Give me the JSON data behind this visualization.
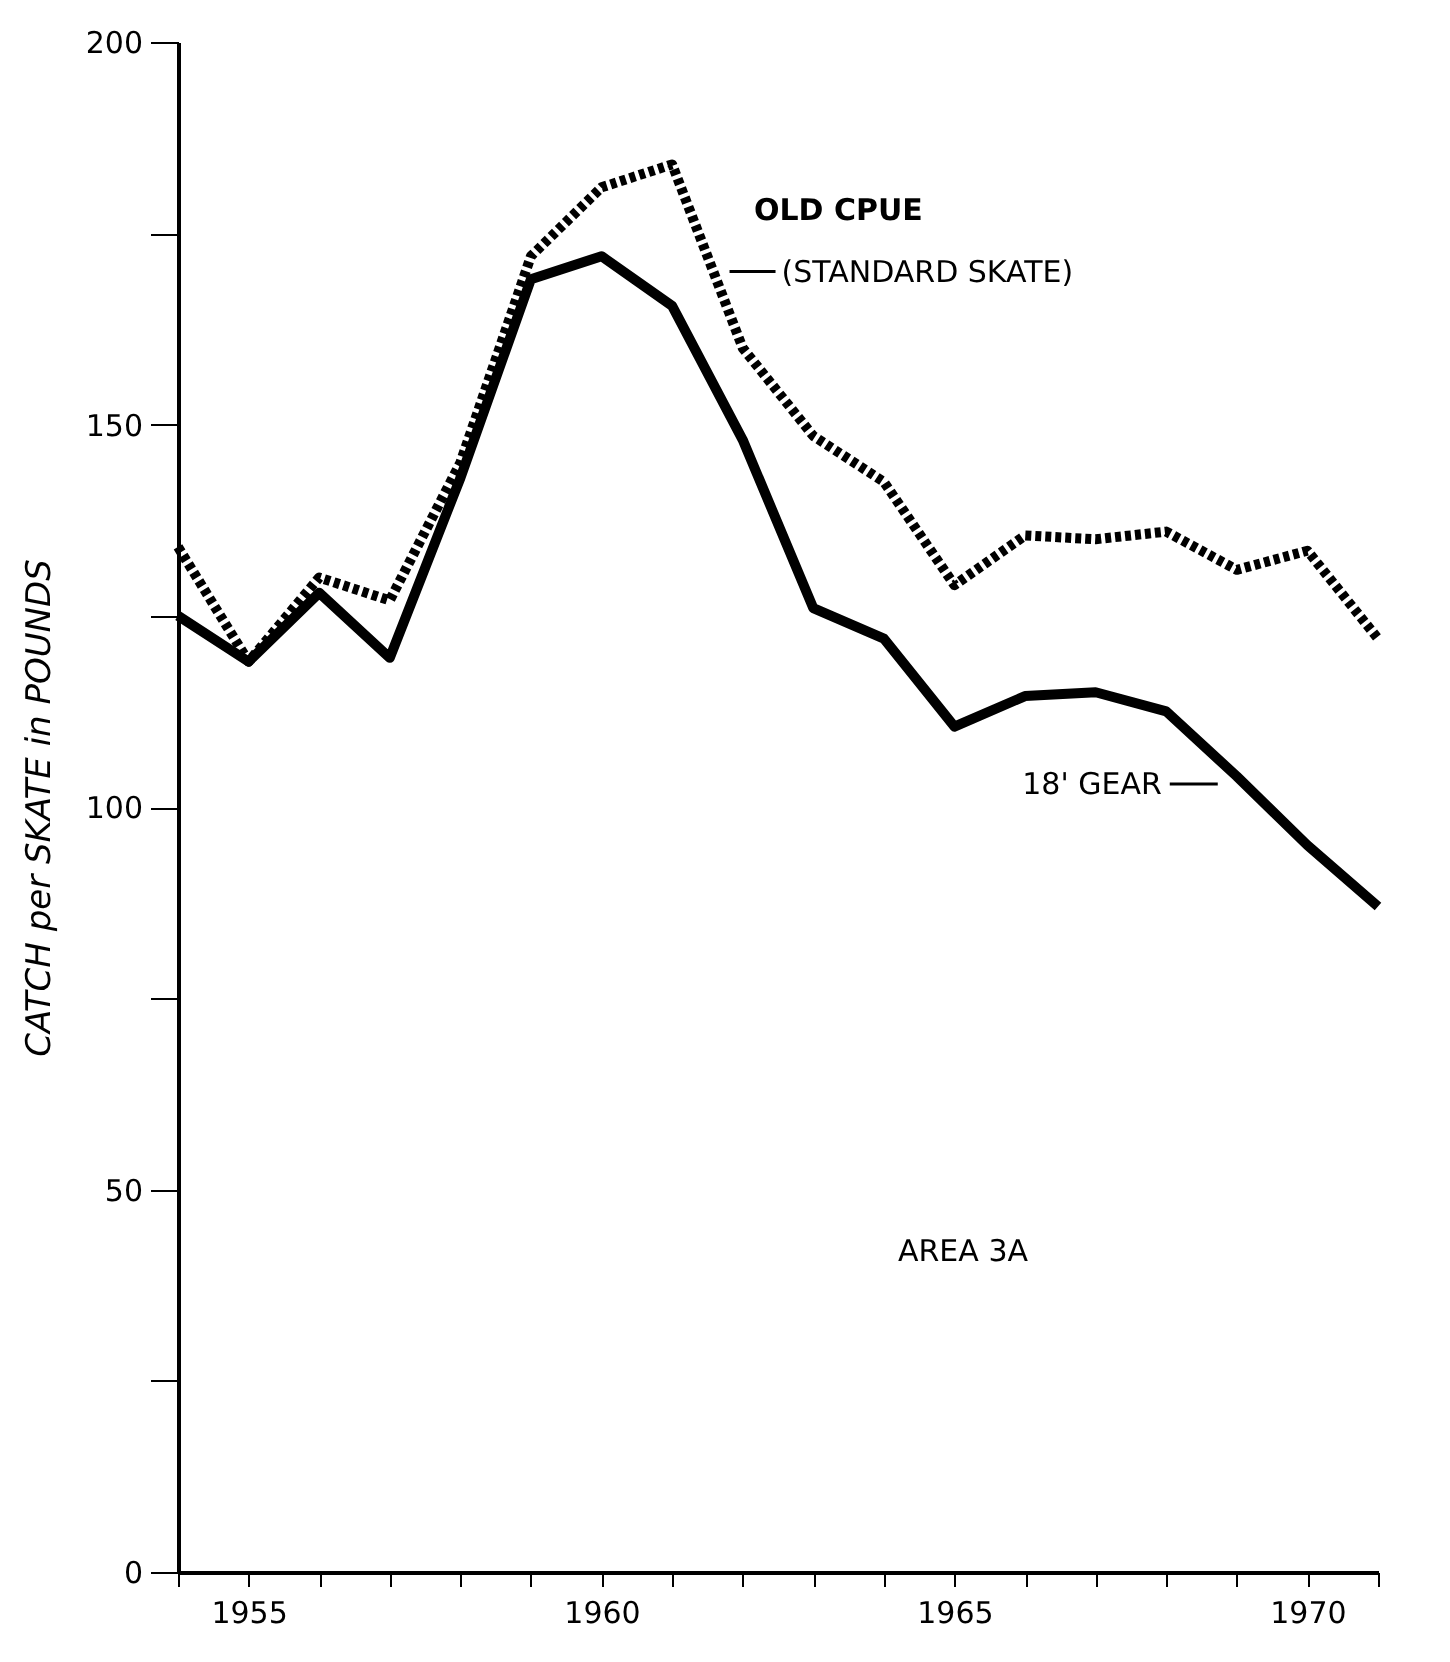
{
  "chart_data": {
    "type": "line",
    "xlabel": null,
    "ylabel": "CATCH per SKATE in POUNDS",
    "x": [
      1954,
      1955,
      1956,
      1957,
      1958,
      1959,
      1960,
      1961,
      1962,
      1963,
      1964,
      1965,
      1966,
      1967,
      1968,
      1969,
      1970,
      1971
    ],
    "series": [
      {
        "color": "#000000",
        "line_style": "solid",
        "values": [
          125,
          119,
          128,
          119.5,
          143,
          169,
          172,
          165.5,
          148,
          126,
          122,
          110.5,
          114.5,
          115,
          112.5,
          104,
          95,
          87
        ]
      },
      {
        "color": "#000000",
        "line_style": "dotted",
        "values": [
          134,
          119,
          130,
          127,
          145,
          172,
          181,
          184,
          160,
          148.5,
          142.5,
          129,
          135.5,
          135,
          136,
          131,
          133.5,
          122
        ]
      }
    ],
    "xlim": [
      1954,
      1971
    ],
    "xticks": [
      {
        "value": 1954,
        "label": null
      },
      1955,
      {
        "value": 1956,
        "label": null
      },
      {
        "value": 1957,
        "label": null
      },
      {
        "value": 1958,
        "label": null
      },
      {
        "value": 1959,
        "label": null
      },
      1960,
      {
        "value": 1961,
        "label": null
      },
      {
        "value": 1962,
        "label": null
      },
      {
        "value": 1963,
        "label": null
      },
      {
        "value": 1964,
        "label": null
      },
      1965,
      {
        "value": 1966,
        "label": null
      },
      {
        "value": 1967,
        "label": null
      },
      {
        "value": 1968,
        "label": null
      },
      {
        "value": 1969,
        "label": null
      },
      1970,
      {
        "value": 1971,
        "label": null
      }
    ],
    "ylim": [
      0,
      200
    ],
    "yticks": [
      0,
      {
        "value": 25,
        "label": null
      },
      50,
      {
        "value": 75,
        "label": null
      },
      100,
      {
        "value": 125,
        "label": null
      },
      150,
      {
        "value": 175,
        "label": null
      },
      200
    ],
    "grid": false,
    "marker": "none",
    "annotations": [
      "OLD CPUE",
      {
        "text": "(STANDARD SKATE)",
        "x": 1961.7,
        "y": 170
      },
      {
        "text": "18' GEAR",
        "x": 1968.9,
        "y": 103
      },
      "AREA 3A"
    ]
  }
}
